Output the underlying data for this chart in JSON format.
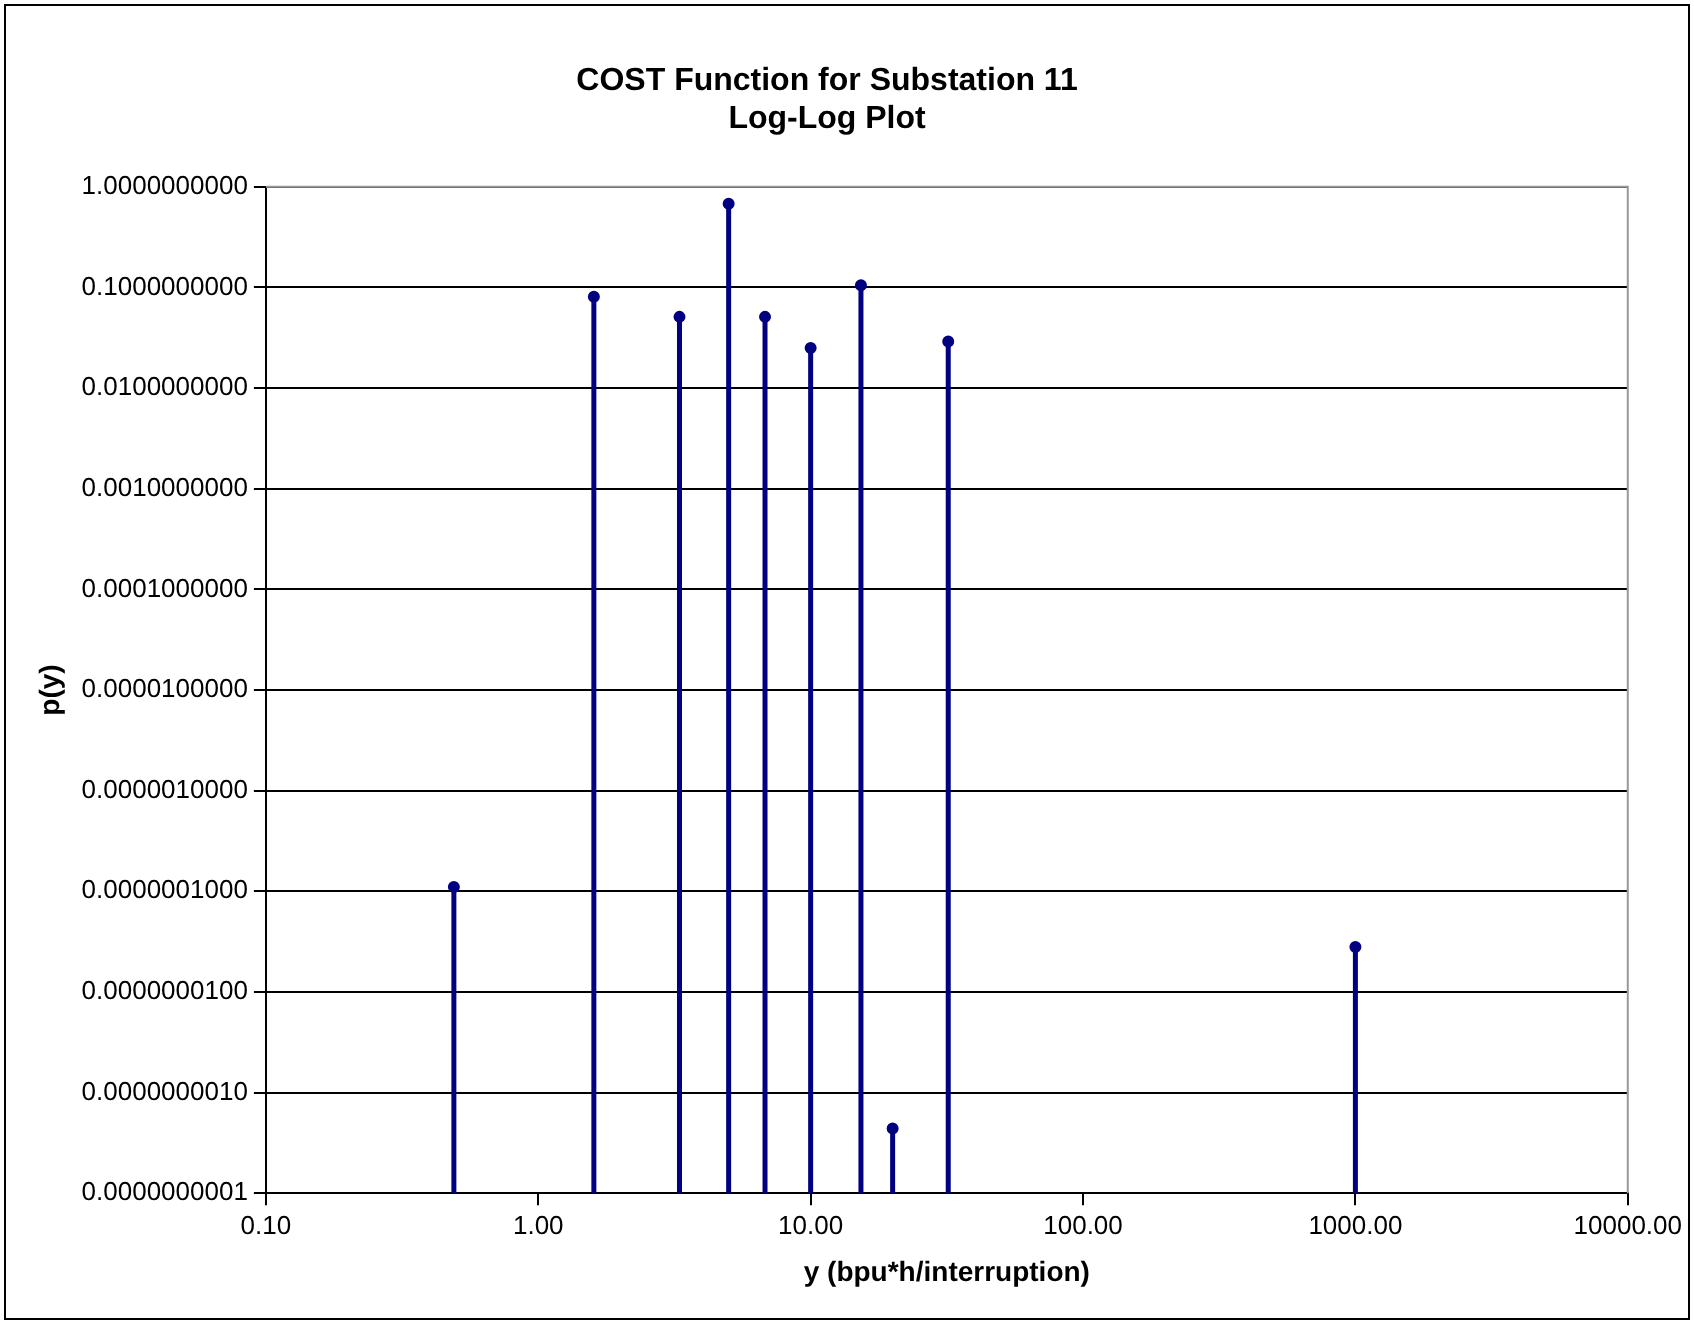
{
  "chart_data": {
    "type": "lollipop",
    "title": "COST Function for Substation 11\nLog-Log Plot",
    "xlabel": "y (bpu*h/interruption)",
    "ylabel": "p(y)",
    "x": [
      0.49,
      1.6,
      3.3,
      5.0,
      6.8,
      10,
      15.3,
      20,
      32,
      1000
    ],
    "series": [
      {
        "color": "#000080",
        "values": [
          1.1e-07,
          0.081,
          0.051,
          0.68,
          0.051,
          0.025,
          0.105,
          4.4e-10,
          0.029,
          2.8e-08
        ]
      }
    ],
    "log": "xy",
    "xlim": [
      0.1,
      10000
    ],
    "ylim": [
      1e-10,
      1
    ],
    "xticks": [
      {
        "value": 0.1,
        "label": "0.10"
      },
      {
        "value": 1,
        "label": "1.00"
      },
      {
        "value": 10,
        "label": "10.00"
      },
      {
        "value": 100,
        "label": "100.00"
      },
      {
        "value": 1000,
        "label": "1000.00"
      },
      {
        "value": 10000,
        "label": "10000.00"
      }
    ],
    "yticks": [
      {
        "value": 1e-10,
        "label": "0.0000000001"
      },
      {
        "value": 1e-09,
        "label": "0.0000000010"
      },
      {
        "value": 1e-08,
        "label": "0.0000000100"
      },
      {
        "value": 1e-07,
        "label": "0.0000001000"
      },
      {
        "value": 1e-06,
        "label": "0.0000010000"
      },
      {
        "value": 1e-05,
        "label": "0.0000100000"
      },
      {
        "value": 0.0001,
        "label": "0.0001000000"
      },
      {
        "value": 0.001,
        "label": "0.0010000000"
      },
      {
        "value": 0.01,
        "label": "0.0100000000"
      },
      {
        "value": 0.1,
        "label": "0.1000000000"
      },
      {
        "value": 1,
        "label": "1.0000000000"
      }
    ],
    "grid": "y",
    "marker": "circle",
    "legend": false
  }
}
